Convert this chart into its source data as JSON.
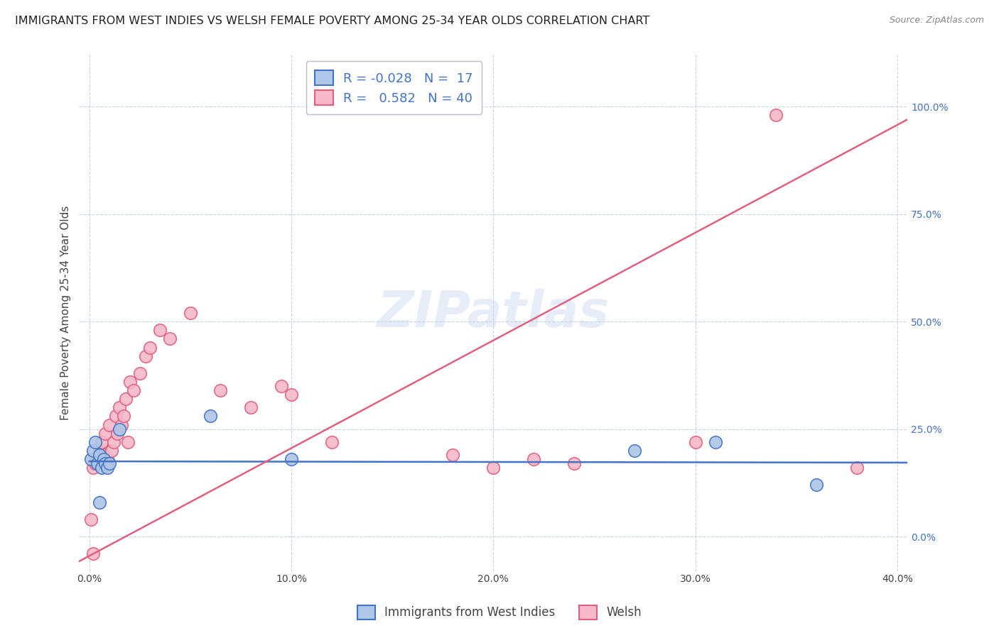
{
  "title": "IMMIGRANTS FROM WEST INDIES VS WELSH FEMALE POVERTY AMONG 25-34 YEAR OLDS CORRELATION CHART",
  "source": "Source: ZipAtlas.com",
  "xlabel_blue": "Immigrants from West Indies",
  "xlabel_pink": "Welsh",
  "ylabel": "Female Poverty Among 25-34 Year Olds",
  "watermark": "ZIPatlas",
  "legend_blue_R": "-0.028",
  "legend_blue_N": "17",
  "legend_pink_R": "0.582",
  "legend_pink_N": "40",
  "xlim": [
    -0.005,
    0.405
  ],
  "ylim": [
    -0.08,
    1.12
  ],
  "xticks": [
    0.0,
    0.1,
    0.2,
    0.3,
    0.4
  ],
  "xticklabels": [
    "0.0%",
    "10.0%",
    "20.0%",
    "30.0%",
    "40.0%"
  ],
  "yticks_right": [
    0.0,
    0.25,
    0.5,
    0.75,
    1.0
  ],
  "yticklabels_right": [
    "0.0%",
    "25.0%",
    "50.0%",
    "75.0%",
    "100.0%"
  ],
  "blue_color": "#aec6e8",
  "pink_color": "#f4b8c8",
  "blue_line_color": "#4472c4",
  "pink_line_color": "#e06080",
  "grid_color": "#c8d4e4",
  "background_color": "#ffffff",
  "blue_scatter": [
    [
      0.001,
      0.18
    ],
    [
      0.002,
      0.2
    ],
    [
      0.003,
      0.22
    ],
    [
      0.004,
      0.17
    ],
    [
      0.005,
      0.19
    ],
    [
      0.006,
      0.16
    ],
    [
      0.007,
      0.18
    ],
    [
      0.008,
      0.17
    ],
    [
      0.009,
      0.16
    ],
    [
      0.01,
      0.17
    ],
    [
      0.015,
      0.25
    ],
    [
      0.06,
      0.28
    ],
    [
      0.1,
      0.18
    ],
    [
      0.27,
      0.2
    ],
    [
      0.31,
      0.22
    ],
    [
      0.36,
      0.12
    ],
    [
      0.005,
      0.08
    ]
  ],
  "pink_scatter": [
    [
      0.001,
      0.04
    ],
    [
      0.002,
      0.16
    ],
    [
      0.003,
      0.17
    ],
    [
      0.004,
      0.18
    ],
    [
      0.005,
      0.2
    ],
    [
      0.006,
      0.22
    ],
    [
      0.007,
      0.19
    ],
    [
      0.008,
      0.24
    ],
    [
      0.009,
      0.18
    ],
    [
      0.01,
      0.26
    ],
    [
      0.011,
      0.2
    ],
    [
      0.012,
      0.22
    ],
    [
      0.013,
      0.28
    ],
    [
      0.014,
      0.24
    ],
    [
      0.015,
      0.3
    ],
    [
      0.016,
      0.26
    ],
    [
      0.017,
      0.28
    ],
    [
      0.018,
      0.32
    ],
    [
      0.019,
      0.22
    ],
    [
      0.02,
      0.36
    ],
    [
      0.022,
      0.34
    ],
    [
      0.025,
      0.38
    ],
    [
      0.028,
      0.42
    ],
    [
      0.03,
      0.44
    ],
    [
      0.035,
      0.48
    ],
    [
      0.04,
      0.46
    ],
    [
      0.05,
      0.52
    ],
    [
      0.065,
      0.34
    ],
    [
      0.08,
      0.3
    ],
    [
      0.095,
      0.35
    ],
    [
      0.1,
      0.33
    ],
    [
      0.12,
      0.22
    ],
    [
      0.18,
      0.19
    ],
    [
      0.2,
      0.16
    ],
    [
      0.22,
      0.18
    ],
    [
      0.24,
      0.17
    ],
    [
      0.3,
      0.22
    ],
    [
      0.34,
      0.98
    ],
    [
      0.38,
      0.16
    ],
    [
      0.002,
      -0.04
    ]
  ],
  "blue_trendline": [
    0.0,
    0.405,
    0.175,
    0.172
  ],
  "pink_trendline": [
    -0.01,
    0.405,
    -0.07,
    0.97
  ],
  "title_fontsize": 11.5,
  "axis_label_fontsize": 11,
  "tick_fontsize": 10,
  "legend_fontsize": 13,
  "watermark_fontsize": 52,
  "watermark_color": "#c8d8f0",
  "watermark_alpha": 0.45
}
